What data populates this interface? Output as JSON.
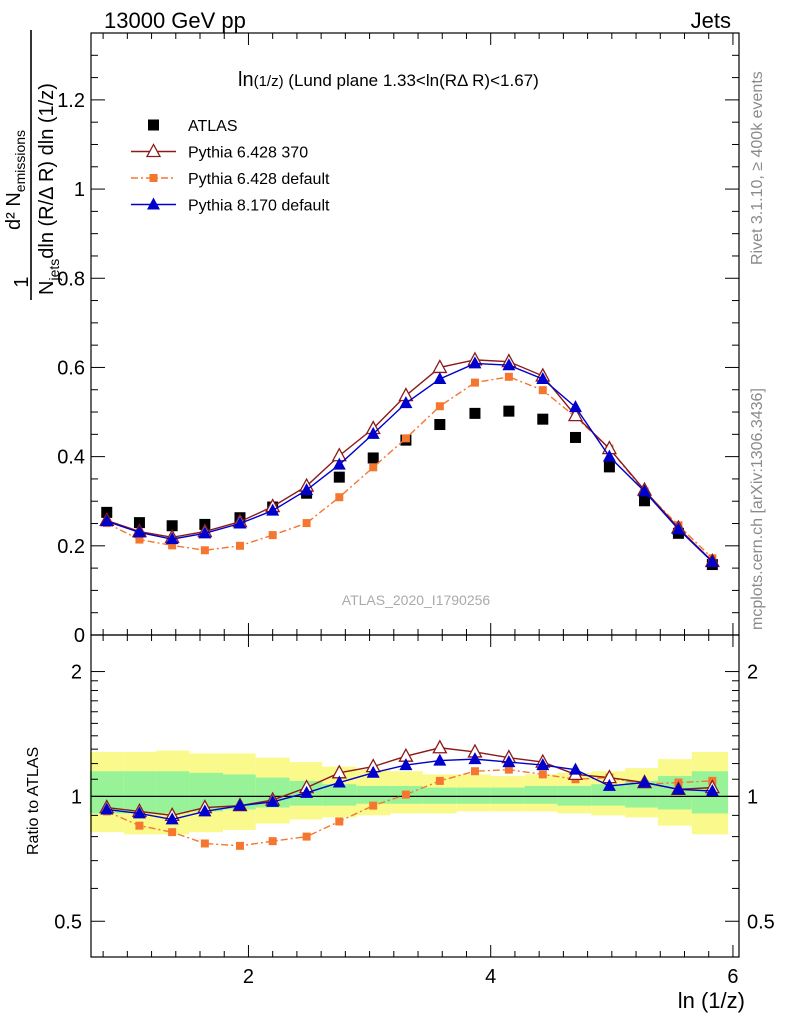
{
  "header": {
    "left": "13000 GeV pp",
    "right": "Jets"
  },
  "side_labels": {
    "rivet": "Rivet 3.1.10, ≥ 400k events",
    "mcplots": "mcplots.cern.ch [arXiv:1306.3436]"
  },
  "watermark": "ATLAS_2020_I1790256",
  "chart_data": [
    {
      "type": "scatter",
      "title": "ln(1/z) (Lund plane 1.33<ln(RΔ R)<1.67)",
      "title_parts": {
        "main": "ln",
        "sub": "(1/z)",
        "rest": " (Lund plane 1.33<ln(RΔ R)<1.67)"
      },
      "ylabel": "1/N_jets d² N_emissions / dln (R/Δ R) dln (1/z)",
      "ylabel_parts": {
        "one": "1",
        "n": "N",
        "jets": "jets",
        "dln": "dln (R/Δ R) dln (1/z)",
        "d2": "d² N",
        "emissions": "emissions"
      },
      "xlim": [
        0.7,
        6.05
      ],
      "ylim": [
        0,
        1.35
      ],
      "yticks": [
        0,
        0.2,
        0.4,
        0.6,
        0.8,
        1,
        1.2
      ],
      "ytick_labels": [
        "0",
        "0.2",
        "0.4",
        "0.6",
        "0.8",
        "1",
        "1.2"
      ],
      "grid": false,
      "legend_position": "top-left",
      "x": [
        0.83,
        1.1,
        1.37,
        1.64,
        1.93,
        2.2,
        2.48,
        2.75,
        3.03,
        3.3,
        3.58,
        3.87,
        4.15,
        4.43,
        4.7,
        4.98,
        5.27,
        5.55,
        5.83
      ],
      "series": [
        {
          "name": "ATLAS",
          "color": "#000000",
          "marker": "square",
          "line": "none",
          "values": [
            0.275,
            0.252,
            0.245,
            0.248,
            0.263,
            0.287,
            0.318,
            0.354,
            0.397,
            0.437,
            0.472,
            0.497,
            0.502,
            0.484,
            0.443,
            0.377,
            0.301,
            0.228,
            0.158
          ]
        },
        {
          "name": "Pythia 6.428 370",
          "color": "#8b1a1a",
          "marker": "triangle-open",
          "line": "solid",
          "values": [
            0.257,
            0.232,
            0.219,
            0.232,
            0.254,
            0.288,
            0.334,
            0.402,
            0.463,
            0.537,
            0.6,
            0.617,
            0.613,
            0.581,
            0.492,
            0.418,
            0.325,
            0.24,
            0.165
          ]
        },
        {
          "name": "Pythia 6.428 default",
          "color": "#f5772f",
          "marker": "square-small",
          "line": "dashdot",
          "values": [
            0.251,
            0.214,
            0.201,
            0.19,
            0.2,
            0.224,
            0.251,
            0.309,
            0.376,
            0.441,
            0.513,
            0.566,
            0.579,
            0.549,
            0.489,
            0.418,
            0.322,
            0.246,
            0.172
          ]
        },
        {
          "name": "Pythia 8.170 default",
          "color": "#0000cc",
          "marker": "triangle",
          "line": "solid",
          "values": [
            0.255,
            0.23,
            0.215,
            0.228,
            0.25,
            0.279,
            0.325,
            0.382,
            0.451,
            0.52,
            0.574,
            0.609,
            0.605,
            0.574,
            0.511,
            0.4,
            0.322,
            0.237,
            0.164
          ]
        }
      ]
    },
    {
      "type": "scatter",
      "ylabel": "Ratio to ATLAS",
      "xlabel": "ln (1/z)",
      "xlim": [
        0.7,
        6.05
      ],
      "xticks": [
        2,
        4,
        6
      ],
      "xtick_labels": [
        "2",
        "4",
        "6"
      ],
      "yscale": "log",
      "ylim": [
        0.41,
        2.45
      ],
      "yticks": [
        0.5,
        1,
        2
      ],
      "ytick_labels": [
        "0.5",
        "1",
        "2"
      ],
      "reference_line": 1,
      "bin_edges": [
        0.69,
        0.97,
        1.24,
        1.51,
        1.79,
        2.06,
        2.34,
        2.61,
        2.89,
        3.17,
        3.44,
        3.72,
        4.0,
        4.28,
        4.55,
        4.83,
        5.11,
        5.38,
        5.66,
        5.96
      ],
      "band_inner": {
        "color": "#98f398",
        "low": [
          0.91,
          0.91,
          0.91,
          0.92,
          0.93,
          0.94,
          0.95,
          0.95,
          0.96,
          0.96,
          0.96,
          0.96,
          0.96,
          0.96,
          0.95,
          0.95,
          0.94,
          0.93,
          0.91
        ],
        "high": [
          1.15,
          1.15,
          1.15,
          1.14,
          1.13,
          1.11,
          1.09,
          1.07,
          1.06,
          1.06,
          1.05,
          1.05,
          1.05,
          1.06,
          1.06,
          1.07,
          1.09,
          1.12,
          1.15
        ]
      },
      "band_outer": {
        "color": "#fafa8c",
        "low": [
          0.82,
          0.81,
          0.81,
          0.82,
          0.83,
          0.86,
          0.88,
          0.89,
          0.9,
          0.91,
          0.91,
          0.92,
          0.92,
          0.92,
          0.91,
          0.9,
          0.89,
          0.85,
          0.81
        ],
        "high": [
          1.28,
          1.28,
          1.29,
          1.27,
          1.27,
          1.24,
          1.21,
          1.18,
          1.16,
          1.15,
          1.13,
          1.13,
          1.12,
          1.13,
          1.14,
          1.15,
          1.17,
          1.23,
          1.28
        ]
      },
      "x": [
        0.83,
        1.1,
        1.37,
        1.64,
        1.93,
        2.2,
        2.48,
        2.75,
        3.03,
        3.3,
        3.58,
        3.87,
        4.15,
        4.43,
        4.7,
        4.98,
        5.27,
        5.55,
        5.83
      ],
      "series": [
        {
          "name": "Pythia 6.428 370",
          "color": "#8b1a1a",
          "marker": "triangle-open",
          "line": "solid",
          "values": [
            0.94,
            0.92,
            0.9,
            0.94,
            0.95,
            0.98,
            1.05,
            1.14,
            1.18,
            1.25,
            1.31,
            1.28,
            1.24,
            1.21,
            1.13,
            1.11,
            1.08,
            1.04,
            1.05
          ]
        },
        {
          "name": "Pythia 6.428 default",
          "color": "#f5772f",
          "marker": "square-small",
          "line": "dashdot",
          "values": [
            0.92,
            0.85,
            0.82,
            0.77,
            0.76,
            0.78,
            0.8,
            0.87,
            0.95,
            1.01,
            1.09,
            1.15,
            1.16,
            1.13,
            1.1,
            1.11,
            1.07,
            1.08,
            1.09
          ]
        },
        {
          "name": "Pythia 8.170 default",
          "color": "#0000cc",
          "marker": "triangle",
          "line": "solid",
          "values": [
            0.93,
            0.91,
            0.88,
            0.92,
            0.95,
            0.97,
            1.02,
            1.08,
            1.14,
            1.19,
            1.22,
            1.23,
            1.21,
            1.19,
            1.16,
            1.06,
            1.08,
            1.04,
            1.03
          ]
        }
      ]
    }
  ]
}
